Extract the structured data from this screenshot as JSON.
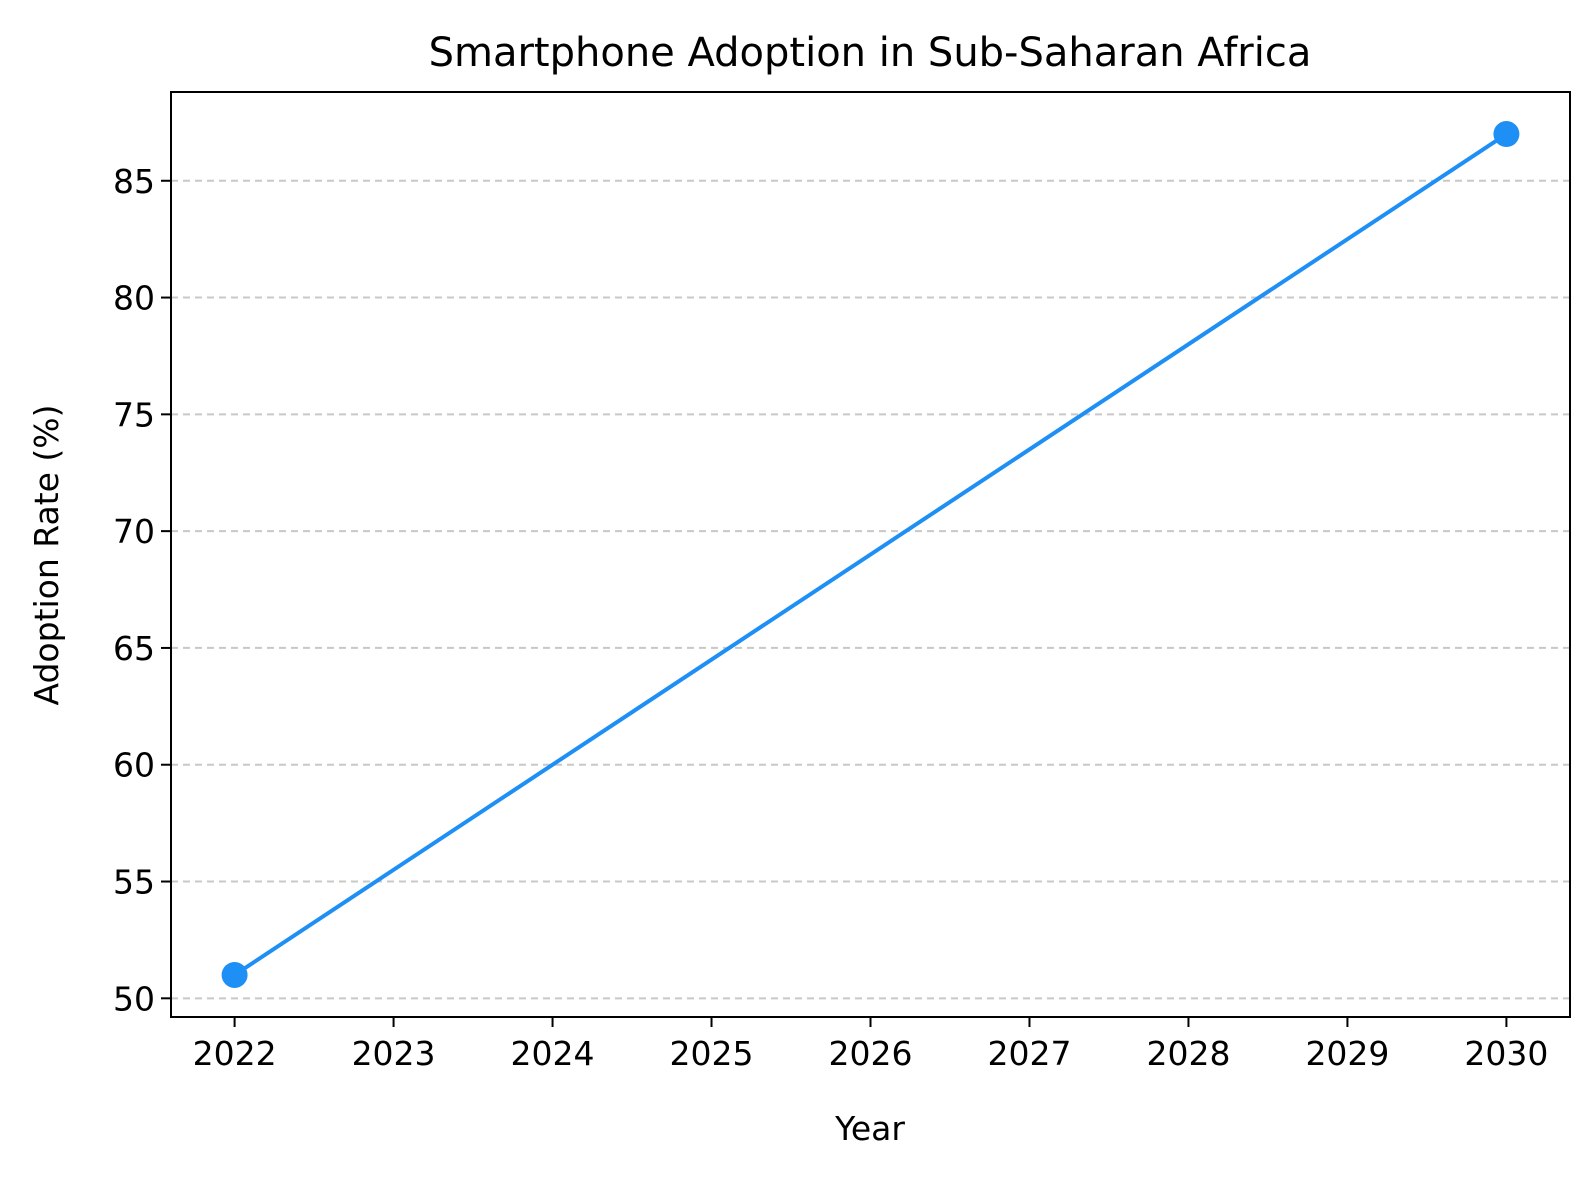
{
  "chart_data": {
    "type": "line",
    "title": "Smartphone Adoption in Sub-Saharan Africa",
    "xlabel": "Year",
    "ylabel": "Adoption Rate (%)",
    "x_ticks": [
      2022,
      2023,
      2024,
      2025,
      2026,
      2027,
      2028,
      2029,
      2030
    ],
    "y_ticks": [
      50,
      55,
      60,
      65,
      70,
      75,
      80,
      85
    ],
    "xlim": [
      2021.6,
      2030.4
    ],
    "ylim": [
      49.2,
      88.8
    ],
    "grid": "y-dashed",
    "legend": "none",
    "series": [
      {
        "x": [
          2022,
          2030
        ],
        "y": [
          51,
          87
        ],
        "color": "#1e8ff5",
        "marker": "circle"
      }
    ]
  }
}
